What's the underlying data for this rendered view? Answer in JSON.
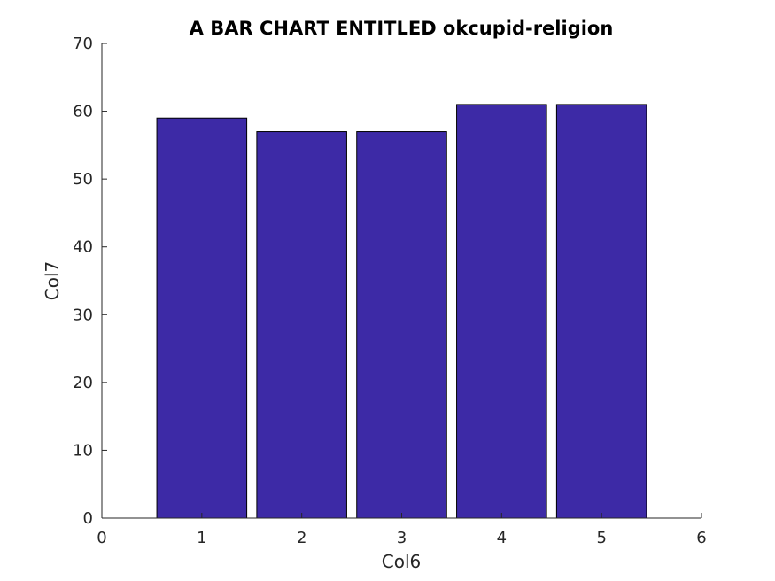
{
  "chart_data": {
    "type": "bar",
    "title": "A BAR CHART ENTITLED okcupid-religion",
    "xlabel": "Col6",
    "ylabel": "Col7",
    "x": [
      1,
      2,
      3,
      4,
      5
    ],
    "values": [
      59,
      57,
      57,
      61,
      61
    ],
    "xlim": [
      0,
      6
    ],
    "ylim": [
      0,
      70
    ],
    "xticks": [
      0,
      1,
      2,
      3,
      4,
      5,
      6
    ],
    "yticks": [
      0,
      10,
      20,
      30,
      40,
      50,
      60,
      70
    ],
    "grid": false,
    "bar_color": "#3d2aa6"
  }
}
